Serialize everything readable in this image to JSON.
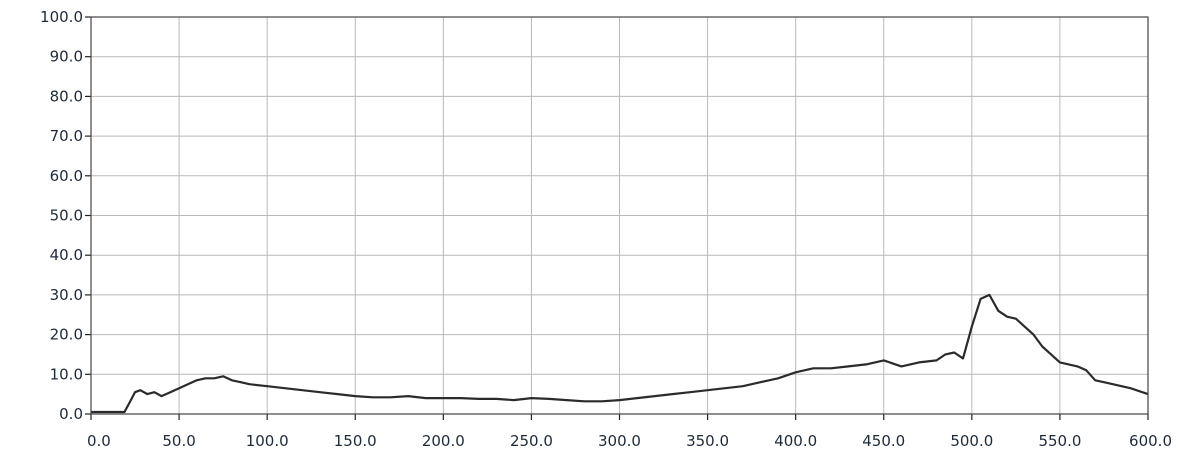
{
  "chart_data": {
    "type": "line",
    "title": "",
    "xlabel": "",
    "ylabel": "",
    "xlim": [
      0,
      600
    ],
    "ylim": [
      0,
      100
    ],
    "grid": true,
    "legend": "none",
    "x_ticks": [
      "0.0",
      "50.0",
      "100.0",
      "150.0",
      "200.0",
      "250.0",
      "300.0",
      "350.0",
      "400.0",
      "450.0",
      "500.0",
      "550.0",
      "600.0"
    ],
    "y_ticks": [
      "0.0",
      "10.0",
      "20.0",
      "30.0",
      "40.0",
      "50.0",
      "60.0",
      "70.0",
      "80.0",
      "90.0",
      "100.0"
    ],
    "series": [
      {
        "color": "#2b2b2b",
        "x": [
          0,
          10,
          19,
          22,
          25,
          28,
          32,
          36,
          40,
          45,
          50,
          55,
          60,
          65,
          70,
          75,
          80,
          85,
          90,
          100,
          110,
          120,
          130,
          140,
          150,
          160,
          170,
          180,
          190,
          200,
          210,
          220,
          230,
          240,
          250,
          260,
          270,
          280,
          290,
          300,
          310,
          320,
          330,
          340,
          350,
          360,
          370,
          380,
          390,
          400,
          410,
          420,
          430,
          440,
          450,
          460,
          470,
          480,
          485,
          490,
          495,
          500,
          505,
          510,
          515,
          520,
          525,
          530,
          535,
          540,
          545,
          550,
          555,
          560,
          565,
          570,
          575,
          580,
          590,
          600
        ],
        "y": [
          0.5,
          0.5,
          0.5,
          3.0,
          5.5,
          6.0,
          5.0,
          5.5,
          4.5,
          5.5,
          6.5,
          7.5,
          8.5,
          9.0,
          9.0,
          9.5,
          8.5,
          8.0,
          7.5,
          7.0,
          6.5,
          6.0,
          5.5,
          5.0,
          4.5,
          4.2,
          4.2,
          4.5,
          4.0,
          4.0,
          4.0,
          3.8,
          3.8,
          3.5,
          4.0,
          3.8,
          3.5,
          3.2,
          3.2,
          3.5,
          4.0,
          4.5,
          5.0,
          5.5,
          6.0,
          6.5,
          7.0,
          8.0,
          9.0,
          10.5,
          11.5,
          11.5,
          12.0,
          12.5,
          13.5,
          12.0,
          13.0,
          13.5,
          15.0,
          15.5,
          14.0,
          22.0,
          29.0,
          30.0,
          26.0,
          24.5,
          24.0,
          22.0,
          20.0,
          17.0,
          15.0,
          13.0,
          12.5,
          12.0,
          11.0,
          8.5,
          8.0,
          7.5,
          6.5,
          5.0
        ]
      }
    ]
  }
}
